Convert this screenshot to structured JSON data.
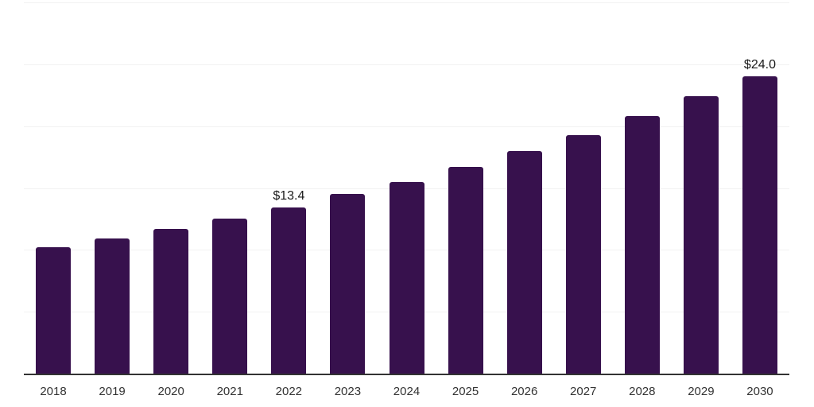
{
  "chart_data": {
    "type": "bar",
    "title": "",
    "xlabel": "",
    "ylabel": "",
    "categories": [
      "2018",
      "2019",
      "2020",
      "2021",
      "2022",
      "2023",
      "2024",
      "2025",
      "2026",
      "2027",
      "2028",
      "2029",
      "2030"
    ],
    "values": [
      10.2,
      10.9,
      11.7,
      12.5,
      13.4,
      14.5,
      15.5,
      16.7,
      18.0,
      19.3,
      20.8,
      22.4,
      24.0
    ],
    "bar_labels": [
      "",
      "",
      "",
      "",
      "$13.4",
      "",
      "",
      "",
      "",
      "",
      "",
      "",
      "$24.0"
    ],
    "ylim": [
      0,
      30
    ],
    "grid_step": 5,
    "grid": "horizontal-only",
    "y_tick_labels_visible": false,
    "legend_position": "none",
    "colors": {
      "bar": "#37114D",
      "axis": "#333333",
      "gridline": "#f2f2f2",
      "value_label": "#1a1a1a",
      "tick_label": "#333333",
      "background": "#ffffff"
    }
  }
}
